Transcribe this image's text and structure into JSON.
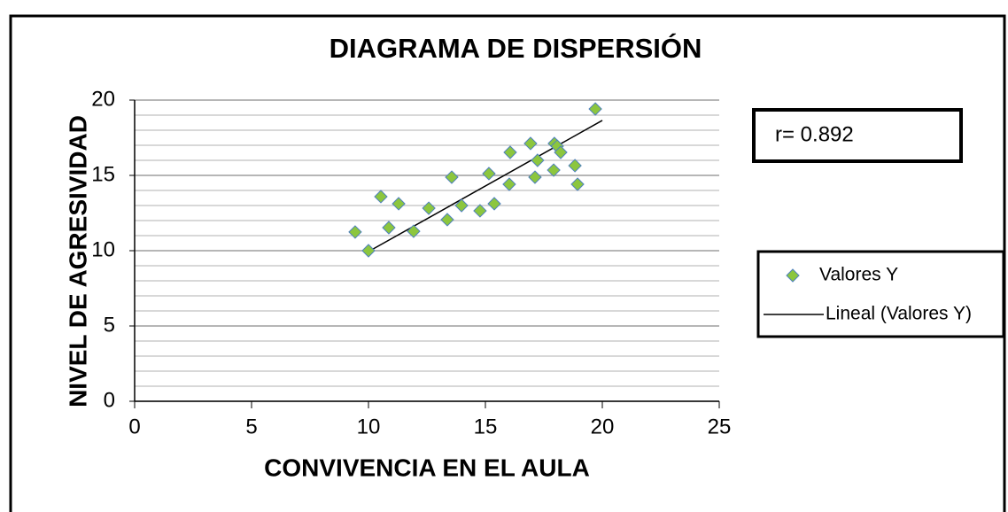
{
  "chart_data": {
    "type": "scatter",
    "title": "DIAGRAMA DE DISPERSIÓN",
    "x_label": "CONVIVENCIA EN EL AULA",
    "y_label": "NIVEL DE AGRESIVIDAD",
    "annotation": "r= 0.892",
    "series": [
      {
        "name": "Valores Y",
        "color": "#8cc63e",
        "x": [
          9.43,
          10.53,
          10.0,
          10.87,
          11.29,
          11.93,
          12.58,
          13.37,
          13.56,
          13.98,
          14.77,
          15.15,
          15.38,
          16.02,
          16.06,
          16.93,
          17.12,
          17.23,
          17.92,
          17.95,
          18.07,
          18.22,
          18.83,
          18.94,
          19.7
        ],
        "values": [
          11.24,
          13.59,
          10.0,
          11.53,
          13.12,
          11.29,
          12.82,
          12.06,
          14.88,
          13.0,
          12.65,
          15.12,
          13.12,
          14.41,
          16.53,
          17.12,
          14.88,
          16.0,
          15.35,
          17.12,
          16.94,
          16.53,
          15.65,
          14.41,
          19.41
        ]
      }
    ],
    "trendline": {
      "name": "Lineal (Valores Y)",
      "color": "#000000",
      "x": [
        10,
        20
      ],
      "values": [
        9.94,
        18.65
      ]
    },
    "xlim": [
      0,
      25
    ],
    "xticks": [
      0,
      5,
      10,
      15,
      20,
      25
    ],
    "ylim": [
      0,
      20
    ],
    "yticks": [
      0,
      5,
      10,
      15,
      20
    ],
    "grid": true,
    "minor_grid_step": 1,
    "legend": "right"
  }
}
